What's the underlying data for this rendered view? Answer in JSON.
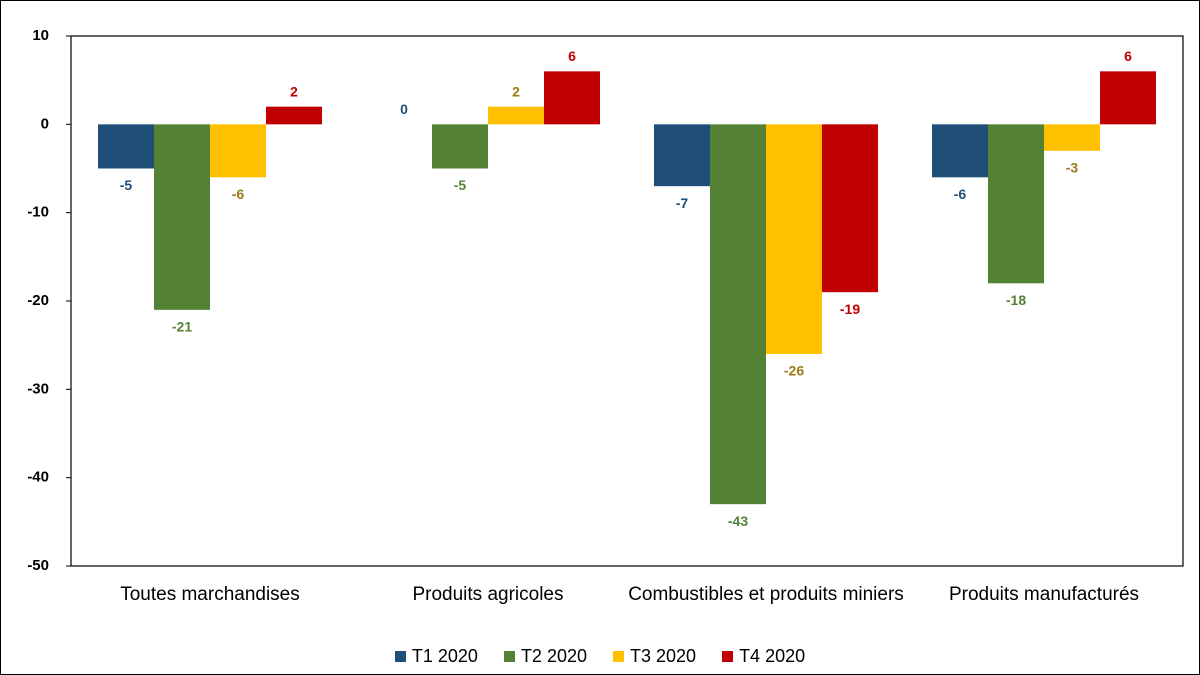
{
  "chart_data": {
    "type": "bar",
    "categories": [
      "Toutes marchandises",
      "Produits agricoles",
      "Combustibles et produits miniers",
      "Produits manufacturés"
    ],
    "series": [
      {
        "name": "T1 2020",
        "color": "#1f4e79",
        "label_color": "#1f4e79",
        "values": [
          -5,
          0,
          -7,
          -6
        ]
      },
      {
        "name": "T2 2020",
        "color": "#548235",
        "label_color": "#548235",
        "values": [
          -21,
          -5,
          -43,
          -18
        ]
      },
      {
        "name": "T3 2020",
        "color": "#ffc000",
        "label_color": "#9c7a16",
        "values": [
          -6,
          2,
          -26,
          -3
        ]
      },
      {
        "name": "T4 2020",
        "color": "#c00000",
        "label_color": "#c00000",
        "values": [
          2,
          6,
          -19,
          6
        ]
      }
    ],
    "ylim": [
      -50,
      10
    ],
    "yticks": [
      -50,
      -40,
      -30,
      -20,
      -10,
      0,
      10
    ],
    "grid": false
  }
}
